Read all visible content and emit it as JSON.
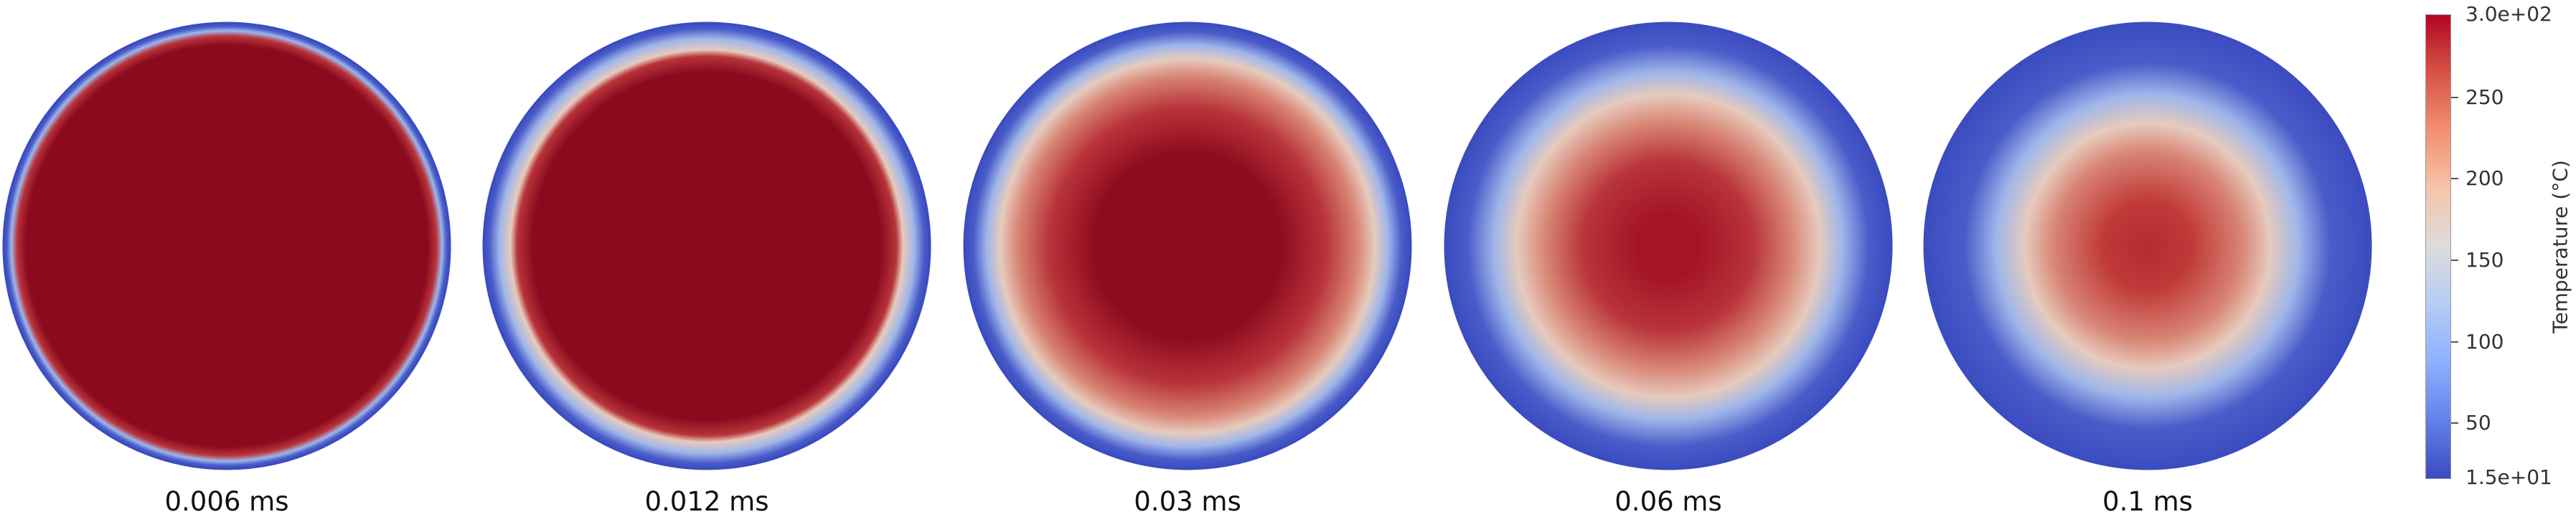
{
  "colors": {
    "hot": "#8b0a1e",
    "hot_edge": "#b8343a",
    "warm": "#d88474",
    "neutral": "#e6cbbd",
    "cool": "#9fb6ea",
    "cold": "#4a5cc9",
    "rim": "#3b4cc0"
  },
  "snapshots": [
    {
      "time_label": "0.006 ms",
      "hot_core_fraction": 0.9,
      "peak_color": "#8b0a1e"
    },
    {
      "time_label": "0.012 ms",
      "hot_core_fraction": 0.78,
      "peak_color": "#8b0a1e"
    },
    {
      "time_label": "0.03 ms",
      "hot_core_fraction": 0.42,
      "peak_color": "#8f0c20"
    },
    {
      "time_label": "0.06 ms",
      "hot_core_fraction": 0.14,
      "peak_color": "#a41426"
    },
    {
      "time_label": "0.1 ms",
      "hot_core_fraction": 0.0,
      "peak_color": "#b52a2f"
    }
  ],
  "colorbar": {
    "title": "Temperature (°C)",
    "min": 15,
    "max": 300,
    "min_label": "1.5e+01",
    "max_label": "3.0e+02",
    "ticks": [
      {
        "value": 250,
        "label": "250"
      },
      {
        "value": 200,
        "label": "200"
      },
      {
        "value": 150,
        "label": "150"
      },
      {
        "value": 100,
        "label": "100"
      },
      {
        "value": 50,
        "label": "50"
      }
    ],
    "gradient": [
      "#b40426",
      "#d75445",
      "#f29072",
      "#f6c4aa",
      "#dddcdc",
      "#b6ccf5",
      "#8db0fe",
      "#6282ea",
      "#3b4cc0"
    ]
  }
}
